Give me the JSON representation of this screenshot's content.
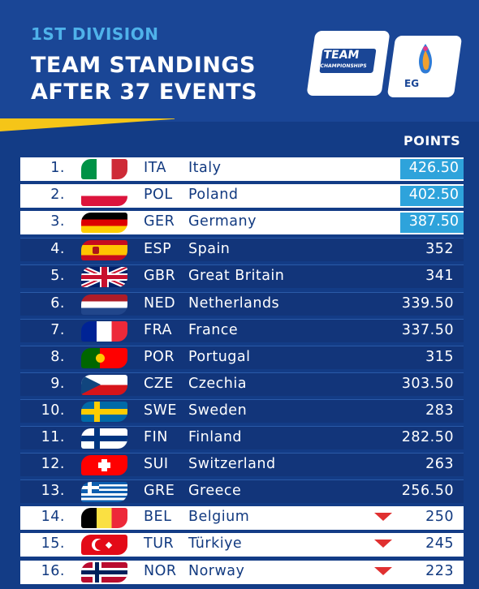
{
  "header": {
    "division": "1ST DIVISION",
    "title_line1": "TEAM STANDINGS",
    "title_line2": "AFTER 37 EVENTS",
    "logo_team": "TEAM",
    "logo_champ": "CHAMPIONSHIPS",
    "logo_eg": "EG"
  },
  "table": {
    "points_label": "POINTS",
    "rows": [
      {
        "rank": "1.",
        "code": "ITA",
        "name": "Italy",
        "points": "426.50"
      },
      {
        "rank": "2.",
        "code": "POL",
        "name": "Poland",
        "points": "402.50"
      },
      {
        "rank": "3.",
        "code": "GER",
        "name": "Germany",
        "points": "387.50"
      },
      {
        "rank": "4.",
        "code": "ESP",
        "name": "Spain",
        "points": "352"
      },
      {
        "rank": "5.",
        "code": "GBR",
        "name": "Great Britain",
        "points": "341"
      },
      {
        "rank": "6.",
        "code": "NED",
        "name": "Netherlands",
        "points": "339.50"
      },
      {
        "rank": "7.",
        "code": "FRA",
        "name": "France",
        "points": "337.50"
      },
      {
        "rank": "8.",
        "code": "POR",
        "name": "Portugal",
        "points": "315"
      },
      {
        "rank": "9.",
        "code": "CZE",
        "name": "Czechia",
        "points": "303.50"
      },
      {
        "rank": "10.",
        "code": "SWE",
        "name": "Sweden",
        "points": "283"
      },
      {
        "rank": "11.",
        "code": "FIN",
        "name": "Finland",
        "points": "282.50"
      },
      {
        "rank": "12.",
        "code": "SUI",
        "name": "Switzerland",
        "points": "263"
      },
      {
        "rank": "13.",
        "code": "GRE",
        "name": "Greece",
        "points": "256.50"
      },
      {
        "rank": "14.",
        "code": "BEL",
        "name": "Belgium",
        "points": "250"
      },
      {
        "rank": "15.",
        "code": "TUR",
        "name": "Türkiye",
        "points": "245"
      },
      {
        "rank": "16.",
        "code": "NOR",
        "name": "Norway",
        "points": "223"
      }
    ]
  },
  "colors": {
    "background": "#133c86",
    "accent": "#4fb2ea",
    "highlight": "#2ea3db",
    "relegation_arrow": "#e03030",
    "stripe": "#f5c518"
  }
}
